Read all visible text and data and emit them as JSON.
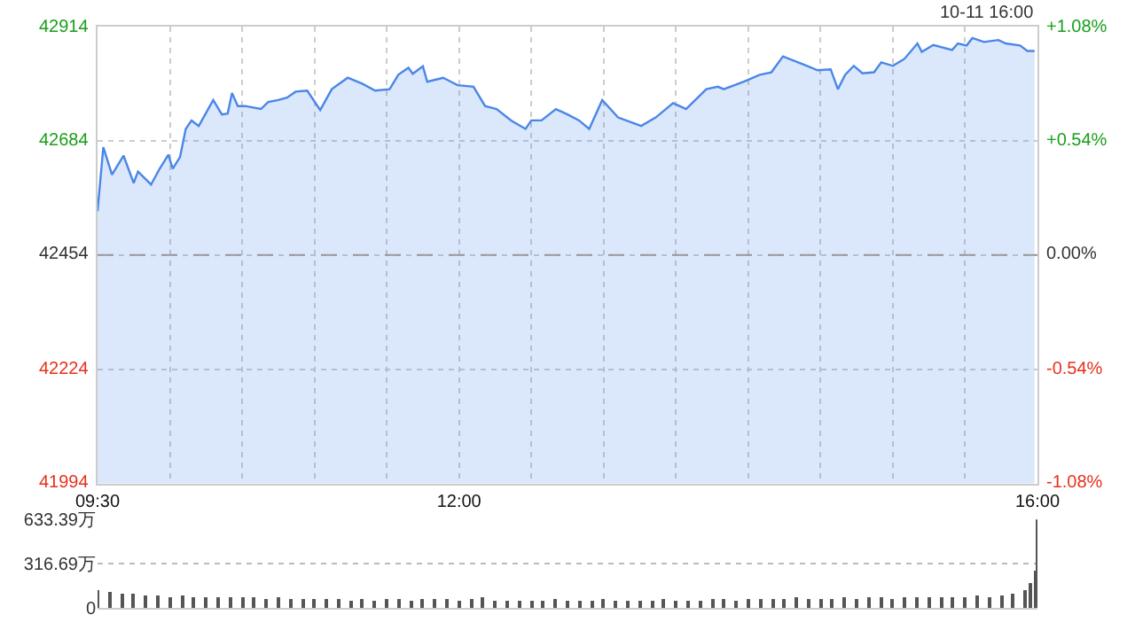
{
  "chart_data": [
    {
      "type": "area",
      "annotations": [
        "10-11 16:00"
      ],
      "x": [
        9.5,
        9.54,
        9.6,
        9.68,
        9.75,
        9.78,
        9.87,
        9.93,
        9.99,
        10.02,
        10.07,
        10.11,
        10.15,
        10.2,
        10.3,
        10.36,
        10.4,
        10.43,
        10.47,
        10.52,
        10.63,
        10.68,
        10.75,
        10.81,
        10.87,
        10.95,
        11.04,
        11.12,
        11.23,
        11.33,
        11.42,
        11.52,
        11.58,
        11.65,
        11.68,
        11.75,
        11.78,
        11.89,
        11.99,
        12.1,
        12.18,
        12.26,
        12.36,
        12.46,
        12.5,
        12.57,
        12.67,
        12.75,
        12.83,
        12.9,
        12.99,
        13.1,
        13.26,
        13.36,
        13.48,
        13.57,
        13.71,
        13.79,
        13.83,
        13.97,
        14.08,
        14.16,
        14.24,
        14.38,
        14.48,
        14.57,
        14.62,
        14.67,
        14.73,
        14.79,
        14.87,
        14.92,
        15.0,
        15.08,
        15.17,
        15.2,
        15.28,
        15.41,
        15.45,
        15.51,
        15.55,
        15.63,
        15.73,
        15.78,
        15.88,
        15.93,
        15.98
      ],
      "series": [
        {
          "color": "#4a86e8",
          "values": [
            42542,
            42671,
            42616,
            42654,
            42599,
            42622,
            42596,
            42628,
            42656,
            42628,
            42651,
            42708,
            42725,
            42714,
            42766,
            42737,
            42739,
            42780,
            42754,
            42754,
            42748,
            42762,
            42766,
            42771,
            42783,
            42785,
            42746,
            42788,
            42811,
            42799,
            42785,
            42788,
            42817,
            42831,
            42819,
            42834,
            42803,
            42811,
            42796,
            42793,
            42754,
            42748,
            42725,
            42708,
            42725,
            42725,
            42748,
            42737,
            42725,
            42708,
            42766,
            42731,
            42714,
            42731,
            42760,
            42748,
            42788,
            42793,
            42788,
            42803,
            42817,
            42822,
            42854,
            42838,
            42826,
            42828,
            42788,
            42817,
            42835,
            42820,
            42822,
            42842,
            42835,
            42849,
            42880,
            42863,
            42877,
            42867,
            42880,
            42876,
            42891,
            42883,
            42887,
            42880,
            42876,
            42865,
            42865
          ]
        }
      ],
      "xlim": [
        9.5,
        16
      ],
      "xticks": [
        {
          "value": 9.5,
          "label": "09:30"
        },
        {
          "value": 10,
          "label": null
        },
        {
          "value": 10.5,
          "label": null
        },
        {
          "value": 11,
          "label": null
        },
        {
          "value": 11.5,
          "label": null
        },
        {
          "value": 12,
          "label": "12:00"
        },
        {
          "value": 12.5,
          "label": null
        },
        {
          "value": 13,
          "label": null
        },
        {
          "value": 13.5,
          "label": null
        },
        {
          "value": 14,
          "label": null
        },
        {
          "value": 14.5,
          "label": null
        },
        {
          "value": 15,
          "label": null
        },
        {
          "value": 15.5,
          "label": null
        },
        {
          "value": 16,
          "label": "16:00"
        }
      ],
      "ylim": [
        41994,
        42914
      ],
      "yticks": [
        41994,
        42224,
        42454,
        42684,
        42914
      ],
      "y2lim": [
        -1.08,
        1.08
      ],
      "y2ticks": [
        {
          "value": -1.08,
          "label": "-1.08%"
        },
        {
          "value": -0.54,
          "label": "-0.54%"
        },
        {
          "value": 0,
          "label": "0.00%"
        },
        {
          "value": 0.54,
          "label": "+0.54%"
        },
        {
          "value": 1.08,
          "label": "+1.08%"
        }
      ],
      "ref_lines": [
        {
          "axis": "y",
          "value": 42454,
          "line_style": "dashed",
          "color": "#999999"
        }
      ],
      "grid": true,
      "marker": "none",
      "line_style": "solid"
    },
    {
      "type": "bar",
      "color": "#555555",
      "x": [
        9.5,
        9.583,
        9.667,
        9.75,
        9.833,
        9.917,
        10.0,
        10.083,
        10.167,
        10.25,
        10.333,
        10.417,
        10.5,
        10.583,
        10.667,
        10.75,
        10.833,
        10.917,
        11.0,
        11.083,
        11.167,
        11.25,
        11.333,
        11.417,
        11.5,
        11.583,
        11.667,
        11.75,
        11.833,
        11.917,
        12.0,
        12.083,
        12.167,
        12.25,
        12.333,
        12.417,
        12.5,
        12.583,
        12.667,
        12.75,
        12.833,
        12.917,
        13.0,
        13.083,
        13.167,
        13.25,
        13.333,
        13.417,
        13.5,
        13.583,
        13.667,
        13.75,
        13.833,
        13.917,
        14.0,
        14.083,
        14.167,
        14.25,
        14.333,
        14.417,
        14.5,
        14.583,
        14.667,
        14.75,
        14.833,
        14.917,
        15.0,
        15.083,
        15.167,
        15.25,
        15.333,
        15.417,
        15.5,
        15.583,
        15.667,
        15.75,
        15.833,
        15.917,
        15.95,
        15.983,
        16.0
      ],
      "values": [
        130,
        110,
        100,
        100,
        90,
        90,
        80,
        90,
        80,
        70,
        80,
        70,
        70,
        70,
        60,
        70,
        60,
        60,
        60,
        60,
        60,
        50,
        60,
        50,
        60,
        60,
        50,
        60,
        60,
        60,
        50,
        60,
        70,
        50,
        50,
        50,
        50,
        50,
        60,
        50,
        50,
        50,
        60,
        50,
        50,
        50,
        50,
        60,
        50,
        50,
        50,
        60,
        60,
        50,
        60,
        60,
        60,
        60,
        70,
        60,
        60,
        60,
        70,
        60,
        70,
        70,
        60,
        70,
        70,
        80,
        70,
        80,
        80,
        90,
        80,
        90,
        100,
        120,
        180,
        260,
        633.39
      ],
      "xlim": [
        9.5,
        16
      ],
      "ylim": [
        0,
        633.39
      ],
      "yticks": [
        0,
        {
          "value": 316.69,
          "label": "316.69万"
        },
        {
          "value": 633.39,
          "label": "633.39万"
        }
      ],
      "tick_labels": "y",
      "grid": "y"
    }
  ]
}
